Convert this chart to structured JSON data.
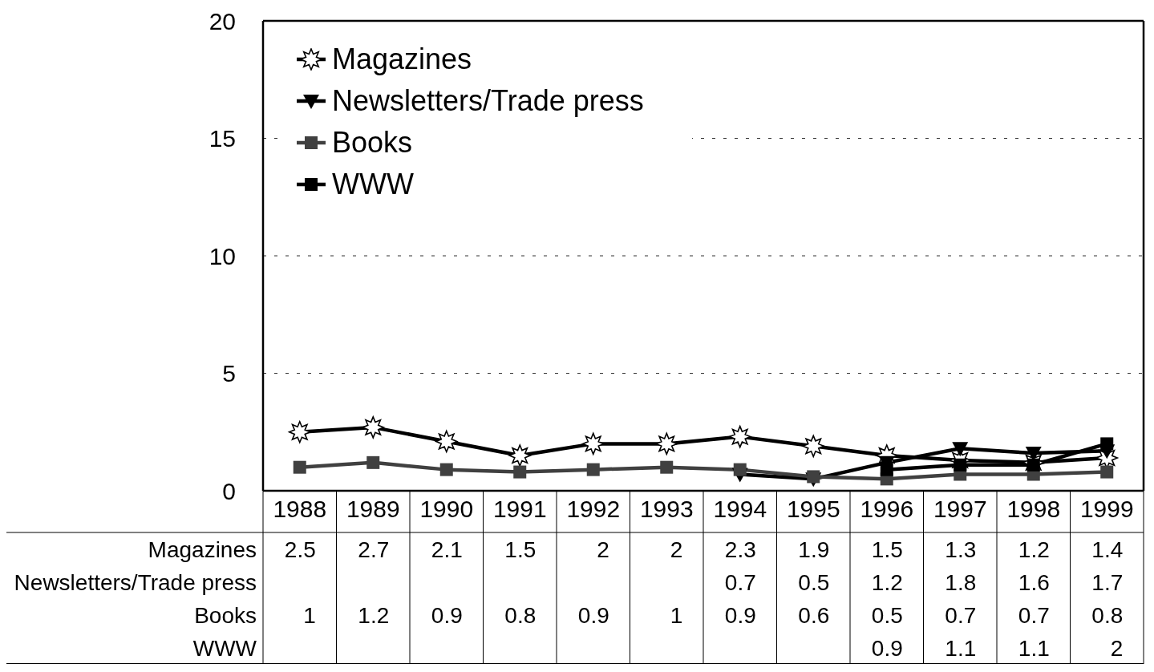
{
  "chart_data": {
    "type": "line",
    "categories": [
      "1988",
      "1989",
      "1990",
      "1991",
      "1992",
      "1993",
      "1994",
      "1995",
      "1996",
      "1997",
      "1998",
      "1999"
    ],
    "series": [
      {
        "name": "Magazines",
        "color": "#000000",
        "marker": "star",
        "values": [
          2.5,
          2.7,
          2.1,
          1.5,
          2,
          2,
          2.3,
          1.9,
          1.5,
          1.3,
          1.2,
          1.4
        ]
      },
      {
        "name": "Newsletters/Trade press",
        "color": "#000000",
        "marker": "triangle",
        "values": [
          null,
          null,
          null,
          null,
          null,
          null,
          0.7,
          0.5,
          1.2,
          1.8,
          1.6,
          1.7
        ]
      },
      {
        "name": "Books",
        "color": "#404040",
        "marker": "square",
        "values": [
          1,
          1.2,
          0.9,
          0.8,
          0.9,
          1,
          0.9,
          0.6,
          0.5,
          0.7,
          0.7,
          0.8
        ]
      },
      {
        "name": "WWW",
        "color": "#000000",
        "marker": "square",
        "values": [
          null,
          null,
          null,
          null,
          null,
          null,
          null,
          null,
          0.9,
          1.1,
          1.1,
          2
        ]
      }
    ],
    "ylim": [
      0,
      20
    ],
    "yticks": [
      0,
      5,
      10,
      15,
      20
    ],
    "grid": "y",
    "legend": "top left",
    "data_labels": true
  }
}
